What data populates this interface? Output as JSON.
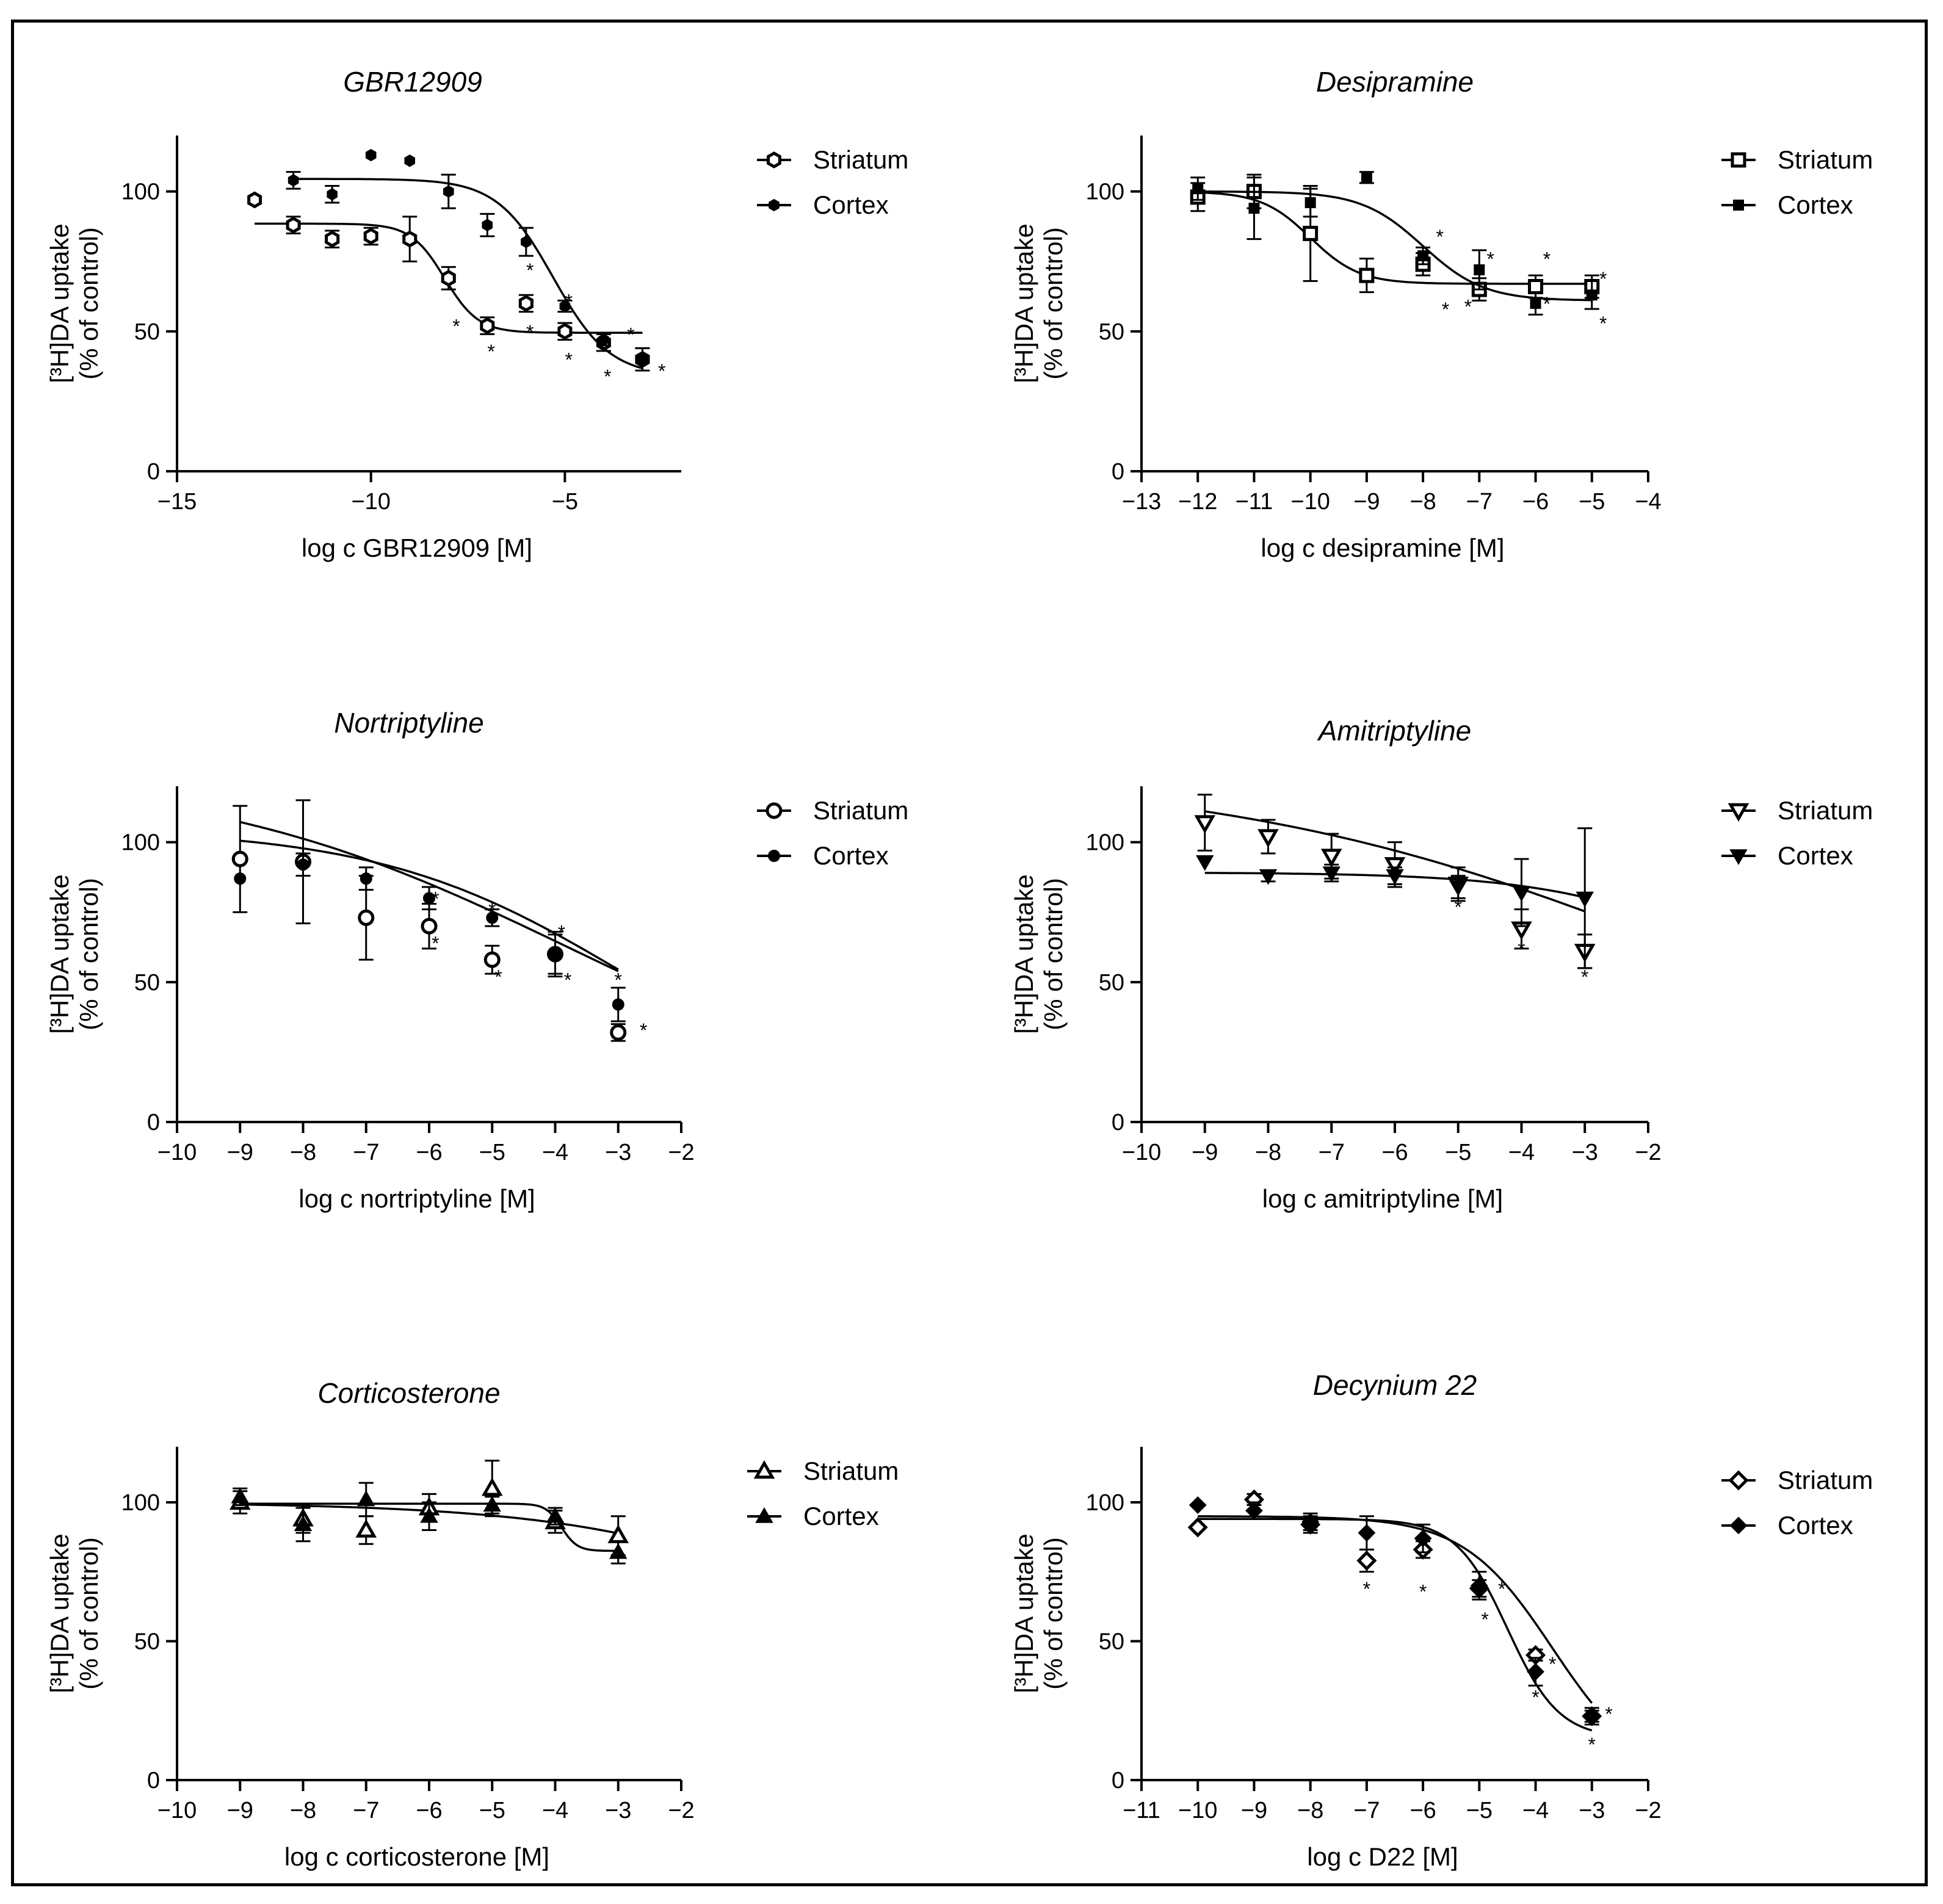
{
  "chart_data": [
    {
      "type": "scatter",
      "title": "GBR12909",
      "xlabel": "log c GBR12909 [M]",
      "ylabel_line1": "[³H]DA uptake",
      "ylabel_line2": "(% of control)",
      "xlim": [
        -15,
        -2
      ],
      "ylim": [
        0,
        120
      ],
      "xticks": [
        -15,
        -10,
        -5
      ],
      "yticks": [
        0,
        50,
        100
      ],
      "xtick_labels": [
        "−15",
        "−10",
        "−5"
      ],
      "ytick_labels": [
        "0",
        "50",
        "100"
      ],
      "legend": "top-right",
      "series": [
        {
          "name": "Striatum",
          "marker": "hexagon-open",
          "x": [
            -13,
            -12,
            -11,
            -10,
            -9,
            -8,
            -7,
            -6,
            -5,
            -4,
            -3
          ],
          "y": [
            97,
            88,
            83,
            84,
            83,
            69,
            52,
            60,
            50,
            46,
            40
          ],
          "err": [
            0,
            3,
            3,
            3,
            8,
            4,
            3,
            3,
            3,
            3,
            4
          ],
          "fit": {
            "top": 88.5,
            "bottom": 49.5,
            "logec50": -8.1,
            "hill": 1.0,
            "xmin": -13,
            "xmax": -3
          }
        },
        {
          "name": "Cortex",
          "marker": "hexagon-filled",
          "x": [
            -12,
            -11,
            -10,
            -9,
            -8,
            -7,
            -6,
            -5,
            -4,
            -3
          ],
          "y": [
            104,
            99,
            113,
            111,
            100,
            88,
            82,
            59,
            47,
            40
          ],
          "err": [
            3,
            3,
            0,
            0,
            6,
            4,
            5,
            2,
            2,
            4
          ],
          "fit": {
            "top": 104.5,
            "bottom": 34,
            "logec50": -5.3,
            "hill": 0.6,
            "xmin": -12,
            "xmax": -3
          }
        }
      ],
      "significance_markers": [
        {
          "x": -7.8,
          "y": 52,
          "label": "*"
        },
        {
          "x": -6.9,
          "y": 43,
          "label": "*"
        },
        {
          "x": -5.9,
          "y": 72,
          "label": "*"
        },
        {
          "x": -5.9,
          "y": 50,
          "label": "*"
        },
        {
          "x": -4.9,
          "y": 61,
          "label": "*"
        },
        {
          "x": -4.9,
          "y": 40,
          "label": "*"
        },
        {
          "x": -3.9,
          "y": 34,
          "label": "*"
        },
        {
          "x": -3.3,
          "y": 49,
          "label": "*"
        },
        {
          "x": -2.5,
          "y": 36,
          "label": "*"
        }
      ]
    },
    {
      "type": "scatter",
      "title": "Desipramine",
      "xlabel": "log c desipramine [M]",
      "ylabel_line1": "[³H]DA uptake",
      "ylabel_line2": "(% of control)",
      "xlim": [
        -13,
        -4
      ],
      "ylim": [
        0,
        120
      ],
      "xticks": [
        -13,
        -12,
        -11,
        -10,
        -9,
        -8,
        -7,
        -6,
        -5,
        -4
      ],
      "yticks": [
        0,
        50,
        100
      ],
      "xtick_labels": [
        "−13",
        "−12",
        "−11",
        "−10",
        "−9",
        "−8",
        "−7",
        "−6",
        "−5",
        "−4"
      ],
      "ytick_labels": [
        "0",
        "50",
        "100"
      ],
      "legend": "top-right",
      "series": [
        {
          "name": "Striatum",
          "marker": "square-open",
          "x": [
            -12,
            -11,
            -10,
            -9,
            -8,
            -7,
            -6,
            -5
          ],
          "y": [
            98,
            100,
            85,
            70,
            74,
            65,
            66,
            66
          ],
          "err": [
            5,
            6,
            17,
            6,
            4,
            4,
            4,
            4
          ],
          "fit": {
            "top": 100,
            "bottom": 67,
            "logec50": -10.0,
            "hill": 1.0,
            "xmin": -12,
            "xmax": -5
          }
        },
        {
          "name": "Cortex",
          "marker": "square-filled",
          "x": [
            -12,
            -11,
            -10,
            -9,
            -8,
            -7,
            -6,
            -5
          ],
          "y": [
            101,
            94,
            96,
            105,
            77,
            72,
            60,
            63
          ],
          "err": [
            4,
            11,
            5,
            2,
            3,
            7,
            4,
            5
          ],
          "fit": {
            "top": 100,
            "bottom": 61,
            "logec50": -8.0,
            "hill": 0.8,
            "xmin": -12,
            "xmax": -5
          }
        }
      ],
      "significance_markers": [
        {
          "x": -7.7,
          "y": 84,
          "label": "*"
        },
        {
          "x": -7.6,
          "y": 58,
          "label": "*"
        },
        {
          "x": -6.8,
          "y": 76,
          "label": "*"
        },
        {
          "x": -7.2,
          "y": 59,
          "label": "*"
        },
        {
          "x": -5.8,
          "y": 76,
          "label": "*"
        },
        {
          "x": -5.8,
          "y": 60,
          "label": "*"
        },
        {
          "x": -4.8,
          "y": 69,
          "label": "*"
        },
        {
          "x": -4.8,
          "y": 53,
          "label": "*"
        }
      ]
    },
    {
      "type": "scatter",
      "title": "Nortriptyline",
      "xlabel": "log c nortriptyline [M]",
      "ylabel_line1": "[³H]DA uptake",
      "ylabel_line2": "(% of control)",
      "xlim": [
        -10,
        -2
      ],
      "ylim": [
        0,
        120
      ],
      "xticks": [
        -10,
        -9,
        -8,
        -7,
        -6,
        -5,
        -4,
        -3,
        -2
      ],
      "yticks": [
        0,
        50,
        100
      ],
      "xtick_labels": [
        "−10",
        "−9",
        "−8",
        "−7",
        "−6",
        "−5",
        "−4",
        "−3",
        "−2"
      ],
      "ytick_labels": [
        "0",
        "50",
        "100"
      ],
      "legend": "top-right",
      "series": [
        {
          "name": "Striatum",
          "marker": "circle-open",
          "x": [
            -9,
            -8,
            -7,
            -6,
            -5,
            -4,
            -3
          ],
          "y": [
            94,
            93,
            73,
            70,
            58,
            60,
            32
          ],
          "err": [
            19,
            22,
            15,
            8,
            5,
            7,
            3
          ],
          "fit": {
            "top": 125,
            "bottom": 0,
            "logec50": -3.8,
            "hill": 0.15,
            "xmin": -9,
            "xmax": -3
          }
        },
        {
          "name": "Cortex",
          "marker": "circle-filled",
          "x": [
            -9,
            -8,
            -7,
            -6,
            -5,
            -4,
            -3
          ],
          "y": [
            87,
            92,
            87,
            80,
            73,
            60,
            42
          ],
          "err": [
            0,
            4,
            4,
            4,
            3,
            8,
            6
          ],
          "fit": {
            "top": 105,
            "bottom": 0,
            "logec50": -2.85,
            "hill": 0.22,
            "xmin": -9,
            "xmax": -3
          }
        }
      ],
      "significance_markers": [
        {
          "x": -5.9,
          "y": 80,
          "label": "*"
        },
        {
          "x": -5.9,
          "y": 64,
          "label": "*"
        },
        {
          "x": -5.0,
          "y": 76,
          "label": "*"
        },
        {
          "x": -4.9,
          "y": 52,
          "label": "*"
        },
        {
          "x": -3.9,
          "y": 68,
          "label": "*"
        },
        {
          "x": -3.8,
          "y": 51,
          "label": "*"
        },
        {
          "x": -3.0,
          "y": 51,
          "label": "*"
        },
        {
          "x": -2.6,
          "y": 33,
          "label": "*"
        }
      ]
    },
    {
      "type": "scatter",
      "title": "Amitriptyline",
      "xlabel": "log c amitriptyline [M]",
      "ylabel_line1": "[³H]DA uptake",
      "ylabel_line2": "(% of control)",
      "xlim": [
        -10,
        -2
      ],
      "ylim": [
        0,
        120
      ],
      "xticks": [
        -10,
        -9,
        -8,
        -7,
        -6,
        -5,
        -4,
        -3,
        -2
      ],
      "yticks": [
        0,
        50,
        100
      ],
      "xtick_labels": [
        "−10",
        "−9",
        "−8",
        "−7",
        "−6",
        "−5",
        "−4",
        "−3",
        "−2"
      ],
      "ytick_labels": [
        "0",
        "50",
        "100"
      ],
      "legend": "top-right",
      "series": [
        {
          "name": "Striatum",
          "marker": "triangle-down-open",
          "x": [
            -9,
            -8,
            -7,
            -6,
            -5,
            -4,
            -3
          ],
          "y": [
            107,
            102,
            95,
            92,
            85,
            69,
            61
          ],
          "err": [
            10,
            6,
            8,
            8,
            6,
            7,
            6
          ],
          "fit": {
            "top": 125,
            "bottom": 0,
            "logec50": -1.5,
            "hill": 0.12,
            "xmin": -9,
            "xmax": -3
          }
        },
        {
          "name": "Cortex",
          "marker": "triangle-down-filled",
          "x": [
            -9,
            -8,
            -7,
            -6,
            -5,
            -4,
            -3
          ],
          "y": [
            93,
            88,
            89,
            88,
            84,
            82,
            80
          ],
          "err": [
            0,
            2,
            3,
            3,
            4,
            12,
            25
          ],
          "fit": {
            "top": 89.2,
            "bottom": 30,
            "logec50": -0.5,
            "hill": 0.3,
            "xmin": -9,
            "xmax": -3
          }
        }
      ],
      "significance_markers": [
        {
          "x": -5.0,
          "y": 77,
          "label": "*"
        },
        {
          "x": -4.0,
          "y": 62,
          "label": "*"
        },
        {
          "x": -3.0,
          "y": 52,
          "label": "*"
        }
      ]
    },
    {
      "type": "scatter",
      "title": "Corticosterone",
      "xlabel": "log c corticosterone [M]",
      "ylabel_line1": "[³H]DA uptake",
      "ylabel_line2": "(% of control)",
      "xlim": [
        -10,
        -2
      ],
      "ylim": [
        0,
        120
      ],
      "xticks": [
        -10,
        -9,
        -8,
        -7,
        -6,
        -5,
        -4,
        -3,
        -2
      ],
      "yticks": [
        0,
        50,
        100
      ],
      "xtick_labels": [
        "−10",
        "−9",
        "−8",
        "−7",
        "−6",
        "−5",
        "−4",
        "−3",
        "−2"
      ],
      "ytick_labels": [
        "0",
        "50",
        "100"
      ],
      "legend": "top-right",
      "series": [
        {
          "name": "Striatum",
          "marker": "triangle-up-open",
          "x": [
            -9,
            -8,
            -7,
            -6,
            -5,
            -4,
            -3
          ],
          "y": [
            100,
            94,
            90,
            98,
            105,
            93,
            88
          ],
          "err": [
            4,
            5,
            5,
            5,
            10,
            4,
            7
          ],
          "fit": {
            "top": 100,
            "bottom": 0,
            "logec50": 1.5,
            "hill": 0.2,
            "xmin": -9,
            "xmax": -3
          }
        },
        {
          "name": "Cortex",
          "marker": "triangle-up-filled",
          "x": [
            -9,
            -8,
            -7,
            -6,
            -5,
            -4,
            -3
          ],
          "y": [
            102,
            92,
            101,
            95,
            99,
            95,
            82
          ],
          "err": [
            3,
            6,
            6,
            5,
            3,
            3,
            4
          ],
          "fit": {
            "top": 99.5,
            "bottom": 82.5,
            "logec50": -3.9,
            "hill": 3.5,
            "xmin": -9,
            "xmax": -3
          }
        }
      ],
      "significance_markers": []
    },
    {
      "type": "scatter",
      "title": "Decynium 22",
      "xlabel": "log c D22 [M]",
      "ylabel_line1": "[³H]DA uptake",
      "ylabel_line2": "(% of control)",
      "xlim": [
        -11,
        -2
      ],
      "ylim": [
        0,
        120
      ],
      "xticks": [
        -11,
        -10,
        -9,
        -8,
        -7,
        -6,
        -5,
        -4,
        -3,
        -2
      ],
      "yticks": [
        0,
        50,
        100
      ],
      "xtick_labels": [
        "−11",
        "−10",
        "−9",
        "−8",
        "−7",
        "−6",
        "−5",
        "−4",
        "−3",
        "−2"
      ],
      "ytick_labels": [
        "0",
        "50",
        "100"
      ],
      "legend": "top-right",
      "series": [
        {
          "name": "Striatum",
          "marker": "diamond-open",
          "x": [
            -10,
            -9,
            -8,
            -7,
            -6,
            -5,
            -4,
            -3
          ],
          "y": [
            91,
            101,
            92,
            79,
            83,
            69,
            45,
            23
          ],
          "err": [
            0,
            2,
            3,
            4,
            3,
            3,
            2,
            2
          ],
          "fit": {
            "top": 95,
            "bottom": 0,
            "logec50": -3.7,
            "hill": 0.55,
            "xmin": -10,
            "xmax": -3
          }
        },
        {
          "name": "Cortex",
          "marker": "diamond-filled",
          "x": [
            -10,
            -9,
            -8,
            -7,
            -6,
            -5,
            -4,
            -3
          ],
          "y": [
            99,
            97,
            93,
            89,
            87,
            70,
            39,
            23
          ],
          "err": [
            0,
            3,
            3,
            6,
            5,
            5,
            5,
            3
          ],
          "fit": {
            "top": 94,
            "bottom": 15,
            "logec50": -4.5,
            "hill": 0.95,
            "xmin": -10,
            "xmax": -3
          }
        }
      ],
      "significance_markers": [
        {
          "x": -7.0,
          "y": 69,
          "label": "*"
        },
        {
          "x": -6.0,
          "y": 68,
          "label": "*"
        },
        {
          "x": -4.9,
          "y": 58,
          "label": "*"
        },
        {
          "x": -4.6,
          "y": 69,
          "label": "*"
        },
        {
          "x": -3.7,
          "y": 42,
          "label": "*"
        },
        {
          "x": -4.0,
          "y": 30,
          "label": "*"
        },
        {
          "x": -2.7,
          "y": 24,
          "label": "*"
        },
        {
          "x": -3.0,
          "y": 13,
          "label": "*"
        }
      ]
    }
  ]
}
